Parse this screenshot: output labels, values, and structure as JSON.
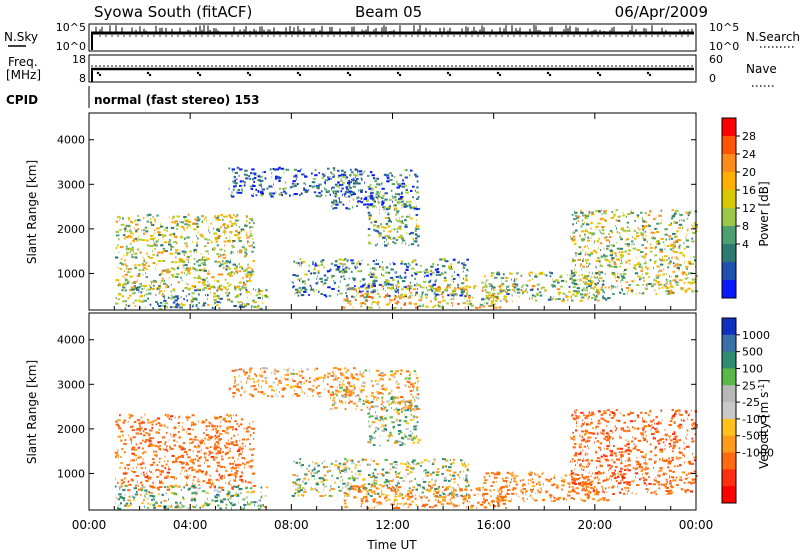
{
  "header": {
    "station": "Syowa South (fitACF)",
    "beam": "Beam 05",
    "date": "06/Apr/2009"
  },
  "top_panels": {
    "nsky_label": "N.Sky",
    "nsky_ticks": [
      "10^5",
      "10^0"
    ],
    "nsearch_label": "N.Search",
    "nsearch_ticks": [
      "10^5",
      "10^0"
    ],
    "freq_label": "Freq.",
    "freq_unit": "[MHz]",
    "freq_ticks": [
      "18",
      "8"
    ],
    "nave_label": "Nave",
    "nave_ticks": [
      "60",
      "0"
    ],
    "cpid_label": "CPID",
    "cpid_value": "normal (fast stereo) 153"
  },
  "chart_data": [
    {
      "type": "heatmap",
      "name": "power",
      "x": {
        "label": "Time UT",
        "ticks": [
          "00:00",
          "04:00",
          "08:00",
          "12:00",
          "16:00",
          "20:00",
          "00:00"
        ],
        "range_hours": [
          0,
          24
        ]
      },
      "y": {
        "label": "Slant Range [km]",
        "ticks": [
          1000,
          2000,
          3000,
          4000
        ],
        "range_km": [
          180,
          4600
        ]
      },
      "colorbar": {
        "label": "Power [dB]",
        "ticks": [
          "28",
          "24",
          "20",
          "16",
          "12",
          "8",
          "4"
        ],
        "colors": [
          "#ff0000",
          "#ff5500",
          "#ff8c1a",
          "#ffb000",
          "#d8c800",
          "#9cc84a",
          "#4fa070",
          "#2d7a70",
          "#2050b0",
          "#0a1aff"
        ]
      },
      "echo_regions": [
        {
          "t": [
            1.0,
            6.5
          ],
          "r": [
            600,
            2300
          ],
          "v": 16
        },
        {
          "t": [
            1.0,
            7.0
          ],
          "r": [
            180,
            700
          ],
          "v": 12
        },
        {
          "t": [
            5.5,
            10.5
          ],
          "r": [
            2700,
            3350
          ],
          "v": 4
        },
        {
          "t": [
            8.0,
            15.0
          ],
          "r": [
            450,
            1300
          ],
          "v": 8
        },
        {
          "t": [
            10.0,
            16.5
          ],
          "r": [
            200,
            700
          ],
          "v": 20
        },
        {
          "t": [
            11.0,
            13.0
          ],
          "r": [
            1600,
            2700
          ],
          "v": 12
        },
        {
          "t": [
            15.5,
            20.5
          ],
          "r": [
            350,
            1000
          ],
          "v": 14
        },
        {
          "t": [
            19.0,
            24.0
          ],
          "r": [
            500,
            2400
          ],
          "v": 16
        },
        {
          "t": [
            9.5,
            13.0
          ],
          "r": [
            2400,
            3300
          ],
          "v": 6
        }
      ]
    },
    {
      "type": "heatmap",
      "name": "velocity",
      "x": {
        "label": "Time UT",
        "ticks": [
          "00:00",
          "04:00",
          "08:00",
          "12:00",
          "16:00",
          "20:00",
          "00:00"
        ],
        "range_hours": [
          0,
          24
        ]
      },
      "y": {
        "label": "Slant Range [km]",
        "ticks": [
          1000,
          2000,
          3000,
          4000
        ],
        "range_km": [
          180,
          4600
        ]
      },
      "colorbar": {
        "label": "Velocity [m s-1]",
        "ticks": [
          "1000",
          "500",
          "100",
          "25",
          "-25",
          "-100",
          "-500",
          "-1000"
        ],
        "colors": [
          "#1030c0",
          "#3a70a8",
          "#2e8a70",
          "#5ab84a",
          "#b8b8b8",
          "#c8c8c8",
          "#ffc21a",
          "#ff9a1a",
          "#ff6a10",
          "#ff3010",
          "#ff0000"
        ]
      },
      "echo_regions": [
        {
          "t": [
            1.0,
            6.5
          ],
          "r": [
            600,
            2300
          ],
          "v": -300
        },
        {
          "t": [
            1.0,
            7.0
          ],
          "r": [
            180,
            700
          ],
          "v": 80
        },
        {
          "t": [
            5.5,
            10.5
          ],
          "r": [
            2700,
            3350
          ],
          "v": -150
        },
        {
          "t": [
            8.0,
            15.0
          ],
          "r": [
            450,
            1300
          ],
          "v": 0
        },
        {
          "t": [
            10.0,
            16.5
          ],
          "r": [
            200,
            700
          ],
          "v": -200
        },
        {
          "t": [
            11.0,
            13.0
          ],
          "r": [
            1600,
            2700
          ],
          "v": 60
        },
        {
          "t": [
            15.5,
            20.5
          ],
          "r": [
            350,
            1000
          ],
          "v": -250
        },
        {
          "t": [
            19.0,
            24.0
          ],
          "r": [
            500,
            2400
          ],
          "v": -350
        },
        {
          "t": [
            9.5,
            13.0
          ],
          "r": [
            2400,
            3300
          ],
          "v": -120
        }
      ]
    }
  ]
}
